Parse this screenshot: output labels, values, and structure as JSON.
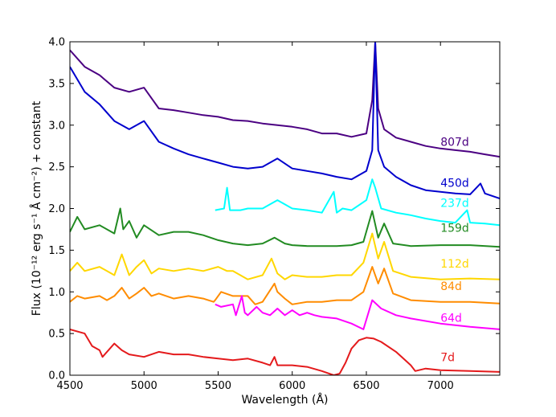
{
  "chart_data": {
    "type": "line",
    "xlabel": "Wavelength (Å)",
    "ylabel": "Flux (10⁻¹² erg s⁻¹ Å cm⁻²) + constant",
    "xlim": [
      4500,
      7400
    ],
    "ylim": [
      0.0,
      4.0
    ],
    "xticks": [
      4500,
      5000,
      5500,
      6000,
      6500,
      7000
    ],
    "yticks": [
      "0.0",
      "0.5",
      "1.0",
      "1.5",
      "2.0",
      "2.5",
      "3.0",
      "3.5",
      "4.0"
    ],
    "grid": false,
    "legend": "none",
    "series": [
      {
        "name": "807d",
        "color": "#4b0082",
        "label_position": [
          7000,
          2.75
        ],
        "x": [
          4500,
          4600,
          4700,
          4800,
          4900,
          5000,
          5100,
          5200,
          5300,
          5400,
          5500,
          5600,
          5700,
          5800,
          5900,
          6000,
          6100,
          6200,
          6300,
          6400,
          6500,
          6540,
          6560,
          6580,
          6620,
          6700,
          6800,
          6900,
          7000,
          7100,
          7200,
          7300,
          7400
        ],
        "y": [
          3.9,
          3.7,
          3.6,
          3.45,
          3.4,
          3.45,
          3.2,
          3.18,
          3.15,
          3.12,
          3.1,
          3.06,
          3.05,
          3.02,
          3.0,
          2.98,
          2.95,
          2.9,
          2.9,
          2.86,
          2.9,
          3.3,
          4.0,
          3.2,
          2.95,
          2.85,
          2.8,
          2.75,
          2.72,
          2.7,
          2.68,
          2.65,
          2.62
        ]
      },
      {
        "name": "450d",
        "color": "#0000cd",
        "label_position": [
          7000,
          2.26
        ],
        "x": [
          4500,
          4600,
          4700,
          4800,
          4900,
          5000,
          5100,
          5200,
          5300,
          5400,
          5500,
          5600,
          5700,
          5800,
          5900,
          6000,
          6100,
          6200,
          6300,
          6400,
          6500,
          6540,
          6560,
          6580,
          6620,
          6700,
          6800,
          6900,
          7000,
          7100,
          7200,
          7270,
          7300,
          7400
        ],
        "y": [
          3.7,
          3.4,
          3.25,
          3.05,
          2.95,
          3.05,
          2.8,
          2.72,
          2.65,
          2.6,
          2.55,
          2.5,
          2.48,
          2.5,
          2.6,
          2.48,
          2.45,
          2.42,
          2.38,
          2.35,
          2.45,
          2.7,
          4.0,
          2.7,
          2.5,
          2.38,
          2.28,
          2.22,
          2.2,
          2.18,
          2.17,
          2.3,
          2.18,
          2.12
        ]
      },
      {
        "name": "237d",
        "color": "#00ffff",
        "label_position": [
          7000,
          2.02
        ],
        "x": [
          5480,
          5540,
          5560,
          5580,
          5650,
          5700,
          5800,
          5900,
          6000,
          6100,
          6200,
          6280,
          6300,
          6340,
          6400,
          6500,
          6540,
          6560,
          6600,
          6700,
          6800,
          6900,
          7000,
          7100,
          7180,
          7200,
          7300,
          7400
        ],
        "y": [
          1.98,
          2.0,
          2.25,
          1.98,
          1.98,
          2.0,
          2.0,
          2.1,
          2.0,
          1.98,
          1.95,
          2.2,
          1.95,
          2.0,
          1.98,
          2.1,
          2.35,
          2.25,
          2.0,
          1.95,
          1.92,
          1.88,
          1.85,
          1.83,
          1.98,
          1.83,
          1.82,
          1.8
        ]
      },
      {
        "name": "159d",
        "color": "#228b22",
        "label_position": [
          7000,
          1.72
        ],
        "x": [
          4500,
          4550,
          4600,
          4700,
          4800,
          4840,
          4860,
          4900,
          4950,
          5000,
          5100,
          5200,
          5300,
          5400,
          5500,
          5600,
          5700,
          5800,
          5880,
          5950,
          6000,
          6100,
          6200,
          6300,
          6400,
          6480,
          6540,
          6580,
          6620,
          6680,
          6800,
          7000,
          7200,
          7400
        ],
        "y": [
          1.72,
          1.9,
          1.75,
          1.8,
          1.7,
          2.0,
          1.75,
          1.85,
          1.65,
          1.8,
          1.68,
          1.72,
          1.72,
          1.68,
          1.62,
          1.58,
          1.56,
          1.58,
          1.65,
          1.58,
          1.56,
          1.55,
          1.55,
          1.55,
          1.56,
          1.6,
          1.97,
          1.65,
          1.82,
          1.58,
          1.55,
          1.56,
          1.56,
          1.54
        ]
      },
      {
        "name": "112d",
        "color": "#ffd700",
        "label_position": [
          7000,
          1.29
        ],
        "x": [
          4500,
          4550,
          4600,
          4700,
          4750,
          4800,
          4850,
          4900,
          4950,
          5000,
          5050,
          5100,
          5200,
          5300,
          5400,
          5500,
          5560,
          5600,
          5700,
          5800,
          5860,
          5900,
          5950,
          6000,
          6100,
          6200,
          6300,
          6400,
          6480,
          6540,
          6580,
          6620,
          6680,
          6800,
          7000,
          7200,
          7400
        ],
        "y": [
          1.25,
          1.35,
          1.25,
          1.3,
          1.25,
          1.2,
          1.45,
          1.2,
          1.3,
          1.38,
          1.22,
          1.28,
          1.25,
          1.28,
          1.25,
          1.3,
          1.25,
          1.25,
          1.15,
          1.2,
          1.4,
          1.22,
          1.15,
          1.2,
          1.18,
          1.18,
          1.2,
          1.2,
          1.35,
          1.7,
          1.4,
          1.6,
          1.25,
          1.18,
          1.15,
          1.16,
          1.15
        ]
      },
      {
        "name": "84d",
        "color": "#ff8c00",
        "label_position": [
          7000,
          1.02
        ],
        "x": [
          4500,
          4550,
          4600,
          4700,
          4750,
          4800,
          4850,
          4900,
          4950,
          5000,
          5050,
          5100,
          5200,
          5300,
          5400,
          5470,
          5480,
          5520,
          5600,
          5700,
          5750,
          5800,
          5880,
          5900,
          5950,
          6000,
          6100,
          6200,
          6300,
          6400,
          6480,
          6540,
          6580,
          6620,
          6680,
          6800,
          7000,
          7200,
          7400
        ],
        "y": [
          0.88,
          0.95,
          0.92,
          0.95,
          0.9,
          0.95,
          1.05,
          0.92,
          0.98,
          1.05,
          0.95,
          0.98,
          0.92,
          0.95,
          0.92,
          0.88,
          0.9,
          1.0,
          0.95,
          0.95,
          0.85,
          0.88,
          1.1,
          1.0,
          0.92,
          0.85,
          0.88,
          0.88,
          0.9,
          0.9,
          1.0,
          1.3,
          1.1,
          1.28,
          0.98,
          0.9,
          0.88,
          0.88,
          0.86
        ]
      },
      {
        "name": "64d",
        "color": "#ff00ff",
        "label_position": [
          7000,
          0.64
        ],
        "x": [
          5480,
          5520,
          5600,
          5620,
          5660,
          5680,
          5700,
          5760,
          5800,
          5850,
          5900,
          5950,
          6000,
          6050,
          6100,
          6150,
          6200,
          6300,
          6400,
          6480,
          6540,
          6600,
          6700,
          6800,
          7000,
          7200,
          7400
        ],
        "y": [
          0.85,
          0.82,
          0.85,
          0.72,
          0.95,
          0.75,
          0.72,
          0.82,
          0.75,
          0.72,
          0.8,
          0.72,
          0.78,
          0.72,
          0.75,
          0.72,
          0.7,
          0.68,
          0.62,
          0.55,
          0.9,
          0.8,
          0.72,
          0.68,
          0.62,
          0.58,
          0.55
        ]
      },
      {
        "name": "7d",
        "color": "#e41a1c",
        "label_position": [
          7000,
          0.17
        ],
        "x": [
          4500,
          4600,
          4650,
          4700,
          4720,
          4800,
          4850,
          4900,
          5000,
          5100,
          5200,
          5300,
          5400,
          5500,
          5600,
          5700,
          5800,
          5850,
          5880,
          5900,
          6000,
          6100,
          6200,
          6280,
          6320,
          6360,
          6400,
          6450,
          6500,
          6550,
          6600,
          6700,
          6800,
          6830,
          6900,
          7000,
          7200,
          7400
        ],
        "y": [
          0.55,
          0.5,
          0.35,
          0.3,
          0.22,
          0.38,
          0.3,
          0.25,
          0.22,
          0.28,
          0.25,
          0.25,
          0.22,
          0.2,
          0.18,
          0.2,
          0.15,
          0.12,
          0.22,
          0.12,
          0.12,
          0.1,
          0.05,
          0.0,
          0.02,
          0.15,
          0.32,
          0.42,
          0.45,
          0.44,
          0.4,
          0.28,
          0.12,
          0.05,
          0.08,
          0.06,
          0.05,
          0.04
        ]
      }
    ]
  }
}
